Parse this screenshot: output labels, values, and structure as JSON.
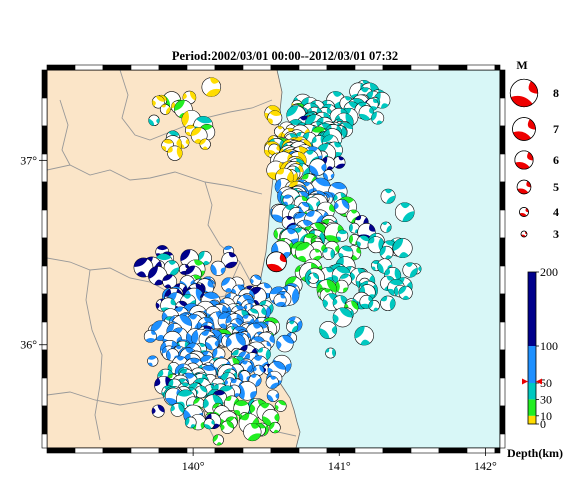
{
  "title": "Period:2002/03/01 00:00--2012/03/01 07:32",
  "axes": {
    "lon_ticks": [
      {
        "label": "140°",
        "value": 140
      },
      {
        "label": "141°",
        "value": 141
      },
      {
        "label": "142°",
        "value": 142
      }
    ],
    "lat_ticks": [
      {
        "label": "37°",
        "value": 37
      },
      {
        "label": "36°",
        "value": 36
      }
    ]
  },
  "magnitude_legend": {
    "title": "M",
    "entries": [
      {
        "label": "8",
        "m": 8
      },
      {
        "label": "7",
        "m": 7
      },
      {
        "label": "6",
        "m": 6
      },
      {
        "label": "5",
        "m": 5
      },
      {
        "label": "4",
        "m": 4
      },
      {
        "label": "3",
        "m": 3
      }
    ]
  },
  "depth_legend": {
    "title": "Depth(km)",
    "ticks": [
      {
        "label": "200",
        "km": 200
      },
      {
        "label": "100",
        "km": 100
      },
      {
        "label": "50",
        "km": 50
      },
      {
        "label": "30",
        "km": 30
      },
      {
        "label": "10",
        "km": 10
      },
      {
        "label": "0",
        "km": 0
      }
    ],
    "marker_km": 52,
    "colors": {
      "0-10": "#ffdd00",
      "10-30": "#22ee22",
      "30-50": "#00c8c0",
      "50-100": "#1e90ff",
      "100-200": "#00008b",
      "current": "#ee0000"
    }
  },
  "colors": {
    "land": "#fbe5c8",
    "sea": "#d8f7f7",
    "boundary": "#999999",
    "frame": "#000000"
  },
  "highlight_event": {
    "lon": 140.57,
    "lat": 36.45,
    "depth_color": "current"
  }
}
